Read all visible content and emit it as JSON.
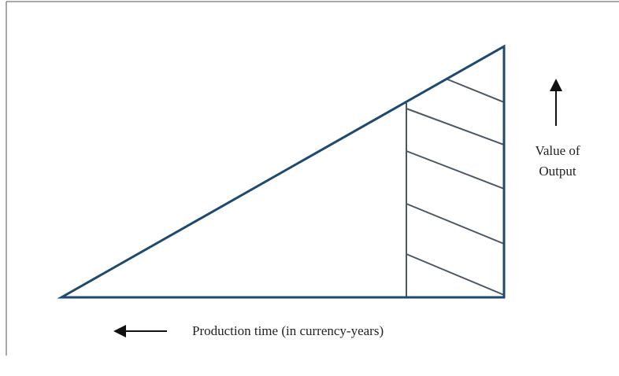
{
  "labels": {
    "value_axis": [
      "Value of",
      "Output"
    ],
    "time_axis": "Production time (in currency-years)"
  }
}
